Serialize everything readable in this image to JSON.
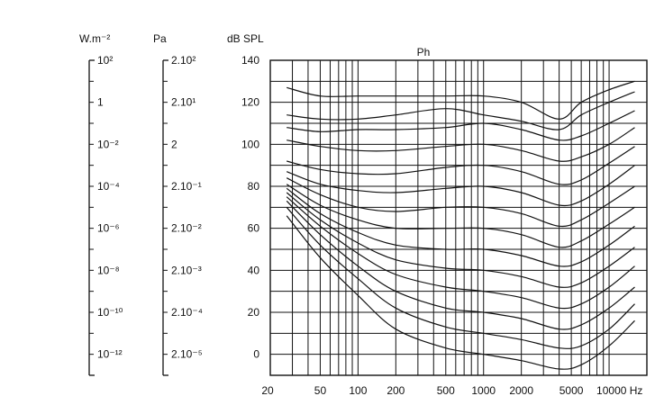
{
  "chart_data": {
    "type": "line",
    "title": "Ph",
    "ylabel": "dB SPL",
    "xlabel": "",
    "x_scale": "log",
    "xlim": [
      20,
      20000
    ],
    "ylim": [
      -10,
      140
    ],
    "grid": true,
    "x_ticks": [
      20,
      50,
      100,
      200,
      500,
      1000,
      2000,
      5000,
      10000
    ],
    "x_tick_labels": [
      "20",
      "50",
      "100",
      "200",
      "500",
      "1000",
      "2000",
      "5000",
      "10000 Hz"
    ],
    "y_ticks": [
      0,
      20,
      40,
      60,
      80,
      100,
      120,
      140
    ],
    "y_tick_labels": [
      "0",
      "20",
      "40",
      "60",
      "80",
      "100",
      "120",
      "140"
    ],
    "x": [
      27,
      50,
      100,
      200,
      500,
      1000,
      2000,
      4000,
      6000,
      10000,
      16000
    ],
    "series": [
      {
        "values": [
          66,
          46,
          28,
          12,
          3,
          0,
          -3,
          -7,
          -5,
          4,
          16
        ]
      },
      {
        "values": [
          70,
          52,
          36,
          22,
          13,
          10,
          7,
          3,
          4,
          12,
          24
        ]
      },
      {
        "values": [
          73,
          57,
          42,
          30,
          22,
          20,
          17,
          12,
          14,
          22,
          32
        ]
      },
      {
        "values": [
          75,
          61,
          48,
          38,
          32,
          30,
          27,
          22,
          24,
          32,
          42
        ]
      },
      {
        "values": [
          77,
          64,
          53,
          45,
          41,
          40,
          37,
          32,
          34,
          42,
          51
        ]
      },
      {
        "values": [
          79,
          67,
          58,
          52,
          50,
          50,
          47,
          42,
          44,
          52,
          61
        ]
      },
      {
        "values": [
          81,
          71,
          64,
          60,
          60,
          60,
          57,
          51,
          54,
          62,
          70
        ]
      },
      {
        "values": [
          84,
          76,
          70,
          68,
          70,
          70,
          67,
          61,
          64,
          72,
          80
        ]
      },
      {
        "values": [
          87,
          81,
          78,
          77,
          79,
          80,
          77,
          71,
          73,
          81,
          90
        ]
      },
      {
        "values": [
          92,
          88,
          86,
          86,
          89,
          90,
          87,
          81,
          83,
          91,
          99
        ]
      },
      {
        "values": [
          102,
          99,
          97,
          97,
          99,
          100,
          97,
          92,
          94,
          100,
          108
        ]
      },
      {
        "values": [
          108,
          106,
          107,
          107,
          108,
          110,
          107,
          102,
          104,
          110,
          116
        ]
      },
      {
        "values": [
          114,
          112,
          112,
          114,
          117,
          114,
          111,
          107,
          114,
          120,
          125
        ]
      },
      {
        "values": [
          127,
          123,
          123,
          123,
          123,
          123,
          120,
          112,
          120,
          126,
          130
        ]
      }
    ],
    "secondary_scales": [
      {
        "unit": "W.m⁻²",
        "labels": [
          "10²",
          "1",
          "10⁻²",
          "10⁻⁴",
          "10⁻⁶",
          "10⁻⁸",
          "10⁻¹⁰",
          "10⁻¹²"
        ]
      },
      {
        "unit": "Pa",
        "labels": [
          "2.10²",
          "2.10¹",
          "2",
          "2.10⁻¹",
          "2.10⁻²",
          "2.10⁻³",
          "2.10⁻⁴",
          "2.10⁻⁵"
        ]
      }
    ]
  },
  "colors": {
    "ink": "#111111",
    "background": "#ffffff"
  }
}
